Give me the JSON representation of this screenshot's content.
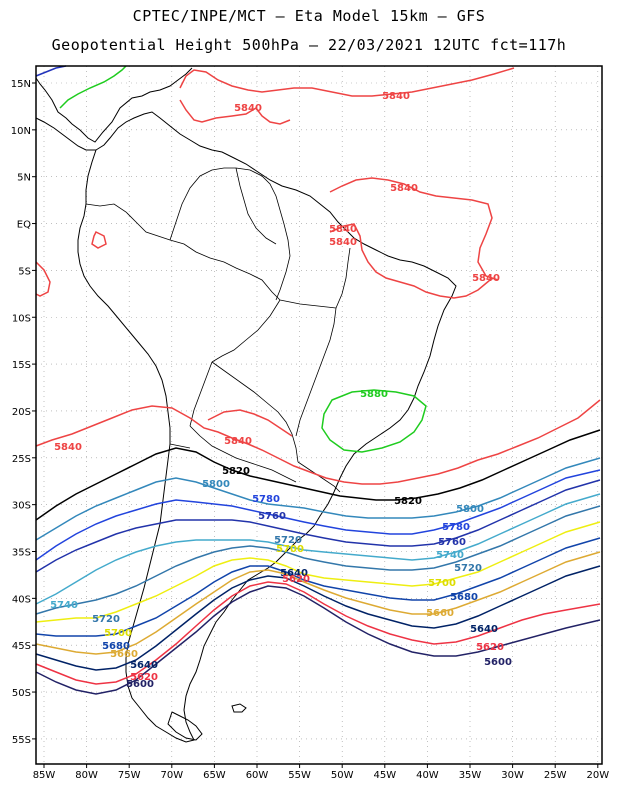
{
  "header": {
    "title_line1": "CPTEC/INPE/MCT –  Eta Model 15km – GFS",
    "title_line2": "Geopotential Height 500hPa – 22/03/2021 12UTC fct=117h"
  },
  "map": {
    "lat_labels": [
      "15N",
      "10N",
      "5N",
      "EQ",
      "5S",
      "10S",
      "15S",
      "20S",
      "25S",
      "30S",
      "35S",
      "40S",
      "45S",
      "50S",
      "55S"
    ],
    "lon_labels": [
      "85W",
      "80W",
      "75W",
      "70W",
      "65W",
      "60W",
      "55W",
      "50W",
      "45W",
      "40W",
      "35W",
      "30W",
      "25W",
      "20W"
    ]
  },
  "contours": [
    {
      "value": "5880",
      "color": "#1fcc1f"
    },
    {
      "value": "5840",
      "color": "#ee4444"
    },
    {
      "value": "5820",
      "color": "#000000"
    },
    {
      "value": "5800",
      "color": "#3388bb"
    },
    {
      "value": "5780",
      "color": "#2244dd"
    },
    {
      "value": "5760",
      "color": "#2233aa"
    },
    {
      "value": "5740",
      "color": "#44aacc"
    },
    {
      "value": "5720",
      "color": "#3377aa"
    },
    {
      "value": "5700",
      "color": "#eeee11"
    },
    {
      "value": "5680",
      "color": "#ddaa33"
    },
    {
      "value": "5660",
      "color": "#1144aa"
    },
    {
      "value": "5640",
      "color": "#002266"
    },
    {
      "value": "5620",
      "color": "#ee3344"
    },
    {
      "value": "5600",
      "color": "#222266"
    }
  ],
  "contour_labels": [
    {
      "text": "5840",
      "color": "#ee4444"
    },
    {
      "text": "5840",
      "color": "#ee4444"
    },
    {
      "text": "5840",
      "color": "#ee4444"
    },
    {
      "text": "5840",
      "color": "#ee4444"
    },
    {
      "text": "5840",
      "color": "#ee4444"
    },
    {
      "text": "5840",
      "color": "#ee4444"
    },
    {
      "text": "5840",
      "color": "#ee4444"
    },
    {
      "text": "5840",
      "color": "#ee4444"
    },
    {
      "text": "5880",
      "color": "#1fcc1f"
    },
    {
      "text": "5820",
      "color": "#000000"
    },
    {
      "text": "5820",
      "color": "#000000"
    },
    {
      "text": "5800",
      "color": "#3388bb"
    },
    {
      "text": "5800",
      "color": "#3388bb"
    },
    {
      "text": "5780",
      "color": "#2244dd"
    },
    {
      "text": "5780",
      "color": "#2244dd"
    },
    {
      "text": "5760",
      "color": "#2233aa"
    },
    {
      "text": "5760",
      "color": "#2233aa"
    },
    {
      "text": "5740",
      "color": "#44aacc"
    },
    {
      "text": "5740",
      "color": "#44aacc"
    },
    {
      "text": "5720",
      "color": "#3377aa"
    },
    {
      "text": "5720",
      "color": "#3377aa"
    },
    {
      "text": "5720",
      "color": "#3377aa"
    },
    {
      "text": "5700",
      "color": "#dddd00"
    },
    {
      "text": "5700",
      "color": "#dddd00"
    },
    {
      "text": "5700",
      "color": "#dddd00"
    },
    {
      "text": "5680",
      "color": "#1144aa"
    },
    {
      "text": "5680",
      "color": "#1144aa"
    },
    {
      "text": "5660",
      "color": "#ddaa33"
    },
    {
      "text": "5660",
      "color": "#ddaa33"
    },
    {
      "text": "5640",
      "color": "#002266"
    },
    {
      "text": "5640",
      "color": "#002266"
    },
    {
      "text": "5640",
      "color": "#002266"
    },
    {
      "text": "5620",
      "color": "#ee3344"
    },
    {
      "text": "5620",
      "color": "#ee3344"
    },
    {
      "text": "5620",
      "color": "#ee3344"
    },
    {
      "text": "5600",
      "color": "#222266"
    },
    {
      "text": "5600",
      "color": "#222266"
    }
  ]
}
